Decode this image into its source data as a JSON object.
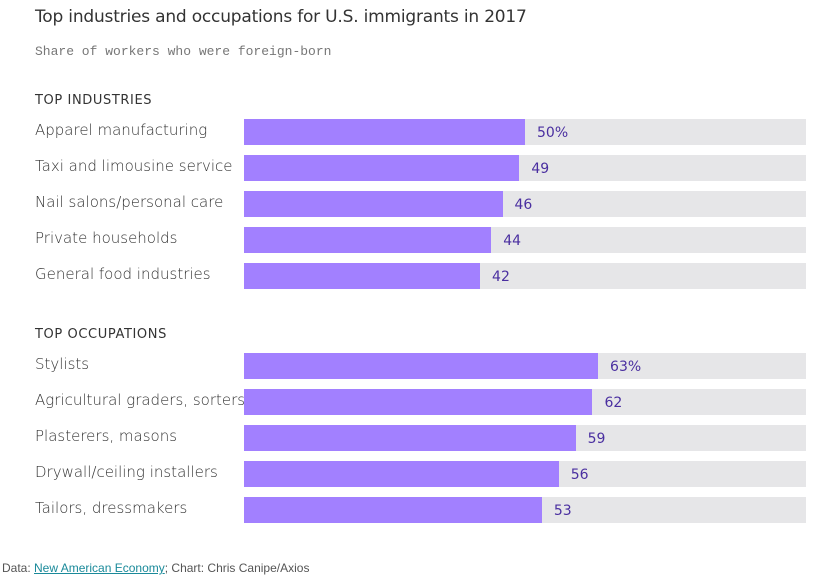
{
  "title": "Top industries and occupations for U.S. immigrants in 2017",
  "subtitle": "Share of workers who were foreign-born",
  "source": {
    "prefix": "Data: ",
    "link": "New American Economy",
    "suffix": "; Chart: Chris Canipe/Axios"
  },
  "colors": {
    "bar": "#a280ff",
    "track": "#e6e6e8",
    "value_text": "#4a2fa0"
  },
  "chart_data": {
    "type": "bar",
    "orientation": "horizontal",
    "title": "Top industries and occupations for U.S. immigrants in 2017",
    "subtitle": "Share of workers who were foreign-born",
    "xlim": [
      0,
      100
    ],
    "unit": "%",
    "groups": [
      {
        "name": "TOP INDUSTRIES",
        "categories": [
          "Apparel manufacturing",
          "Taxi and limousine service",
          "Nail salons/personal care",
          "Private households",
          "General food industries"
        ],
        "values": [
          50,
          49,
          46,
          44,
          42
        ],
        "labels": [
          "50%",
          "49",
          "46",
          "44",
          "42"
        ]
      },
      {
        "name": "TOP OCCUPATIONS",
        "categories": [
          "Stylists",
          "Agricultural graders, sorters",
          "Plasterers, masons",
          "Drywall/ceiling installers",
          "Tailors, dressmakers"
        ],
        "values": [
          63,
          62,
          59,
          56,
          53
        ],
        "labels": [
          "63%",
          "62",
          "59",
          "56",
          "53"
        ]
      }
    ]
  }
}
